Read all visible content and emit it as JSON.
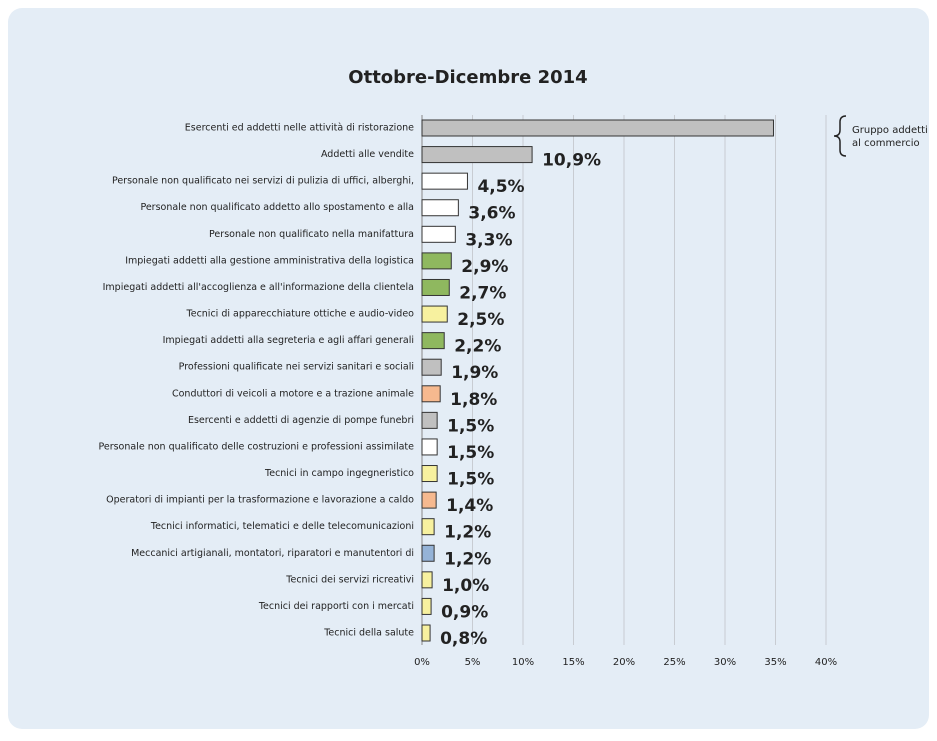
{
  "chart_data": {
    "type": "barh",
    "title": "Ottobre-Dicembre 2014",
    "categories": [
      "Esercenti ed addetti nelle attività di ristorazione",
      "Addetti alle vendite",
      "Personale non qualificato nei servizi di pulizia di uffici, alberghi,",
      "Personale non qualificato addetto allo spostamento e alla",
      "Personale non qualificato nella manifattura",
      "Impiegati addetti alla gestione amministrativa della logistica",
      "Impiegati addetti all'accoglienza e all'informazione della clientela",
      "Tecnici di apparecchiature ottiche e audio-video",
      "Impiegati addetti alla segreteria e agli affari generali",
      "Professioni qualificate nei servizi sanitari e sociali",
      "Conduttori di veicoli a motore e a trazione animale",
      "Esercenti e addetti di agenzie di pompe funebri",
      "Personale non qualificato delle costruzioni e professioni assimilate",
      "Tecnici in campo ingegneristico",
      "Operatori di impianti per la trasformazione e lavorazione a caldo",
      "Tecnici informatici, telematici e delle telecomunicazioni",
      "Meccanici artigianali, montatori, riparatori e manutentori di",
      "Tecnici dei servizi ricreativi",
      "Tecnici dei rapporti con i mercati",
      "Tecnici della salute"
    ],
    "values": [
      34.8,
      10.9,
      4.5,
      3.6,
      3.3,
      2.9,
      2.7,
      2.5,
      2.2,
      1.9,
      1.8,
      1.5,
      1.5,
      1.5,
      1.4,
      1.2,
      1.2,
      1.0,
      0.9,
      0.8
    ],
    "value_labels": [
      null,
      "10,9%",
      "4,5%",
      "3,6%",
      "3,3%",
      "2,9%",
      "2,7%",
      "2,5%",
      "2,2%",
      "1,9%",
      "1,8%",
      "1,5%",
      "1,5%",
      "1,5%",
      "1,4%",
      "1,2%",
      "1,2%",
      "1,0%",
      "0,9%",
      "0,8%"
    ],
    "colors": [
      "#c0c0c0",
      "#c0c0c0",
      "#ffffff",
      "#ffffff",
      "#ffffff",
      "#8fb85f",
      "#8fb85f",
      "#f7f19f",
      "#8fb85f",
      "#c0c0c0",
      "#f6b98f",
      "#c0c0c0",
      "#ffffff",
      "#f7f19f",
      "#f6b98f",
      "#f7f19f",
      "#95b3d7",
      "#f7f19f",
      "#f7f19f",
      "#f7f19f"
    ],
    "xlim": [
      0,
      40
    ],
    "xticks": [
      {
        "value": 0,
        "label": "0%"
      },
      {
        "value": 5,
        "label": "5%"
      },
      {
        "value": 10,
        "label": "10%"
      },
      {
        "value": 15,
        "label": "15%"
      },
      {
        "value": 20,
        "label": "20%"
      },
      {
        "value": 25,
        "label": "25%"
      },
      {
        "value": 30,
        "label": "30%"
      },
      {
        "value": 35,
        "label": "35%"
      },
      {
        "value": 40,
        "label": "40%"
      }
    ],
    "grid": true,
    "annotation": [
      "Gruppo addetti",
      "al commercio"
    ]
  }
}
